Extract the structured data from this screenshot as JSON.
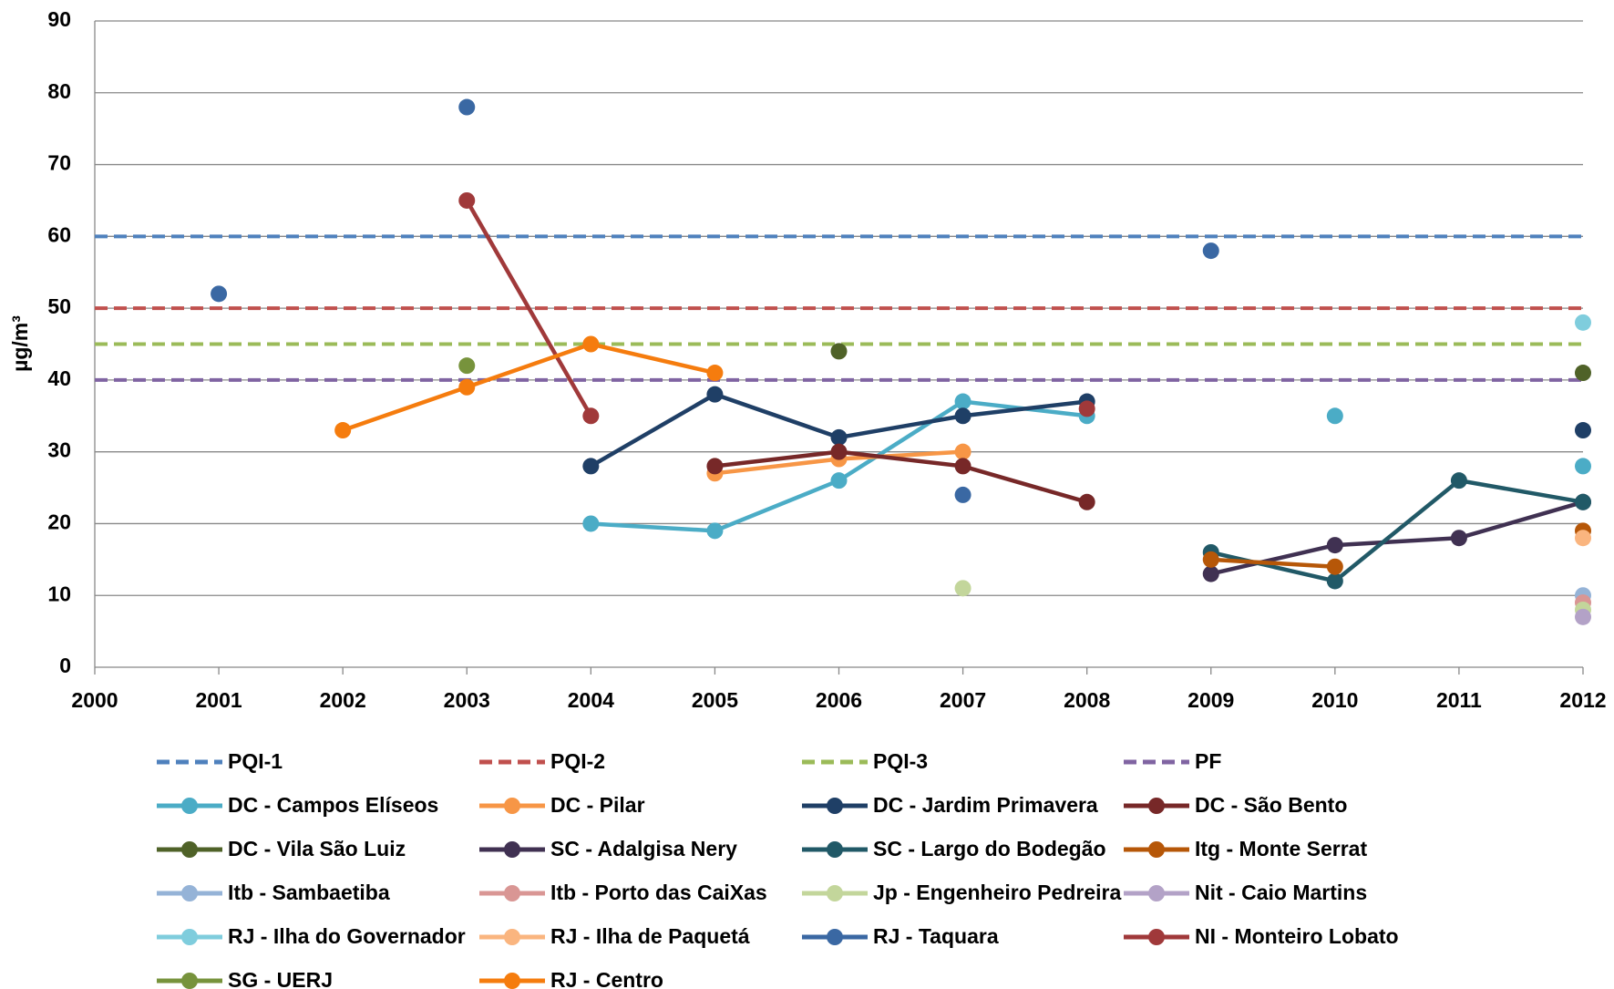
{
  "chart_data": {
    "type": "line",
    "ylabel": "µg/m³",
    "x": [
      2000,
      2001,
      2002,
      2003,
      2004,
      2005,
      2006,
      2007,
      2008,
      2009,
      2010,
      2011,
      2012
    ],
    "xlim": [
      2000,
      2012
    ],
    "xticks": [
      2000,
      2001,
      2002,
      2003,
      2004,
      2005,
      2006,
      2007,
      2008,
      2009,
      2010,
      2011,
      2012
    ],
    "ylim": [
      0,
      90
    ],
    "yticks": [
      0,
      10,
      20,
      30,
      40,
      50,
      60,
      70,
      80,
      90
    ],
    "grid": true,
    "series": [
      {
        "name": "PQI-1",
        "color": "#4f81bd",
        "dashed": true,
        "values": [
          60,
          60,
          60,
          60,
          60,
          60,
          60,
          60,
          60,
          60,
          60,
          60,
          60
        ]
      },
      {
        "name": "PQI-2",
        "color": "#c0504d",
        "dashed": true,
        "values": [
          50,
          50,
          50,
          50,
          50,
          50,
          50,
          50,
          50,
          50,
          50,
          50,
          50
        ]
      },
      {
        "name": "PQI-3",
        "color": "#9bbb59",
        "dashed": true,
        "values": [
          45,
          45,
          45,
          45,
          45,
          45,
          45,
          45,
          45,
          45,
          45,
          45,
          45
        ]
      },
      {
        "name": "PF",
        "color": "#8064a2",
        "dashed": true,
        "values": [
          40,
          40,
          40,
          40,
          40,
          40,
          40,
          40,
          40,
          40,
          40,
          40,
          40
        ]
      },
      {
        "name": "DC - Campos Elíseos",
        "color": "#4bacc6",
        "values": [
          null,
          null,
          null,
          null,
          20,
          19,
          26,
          37,
          35,
          null,
          35,
          null,
          28
        ]
      },
      {
        "name": "DC - Pilar",
        "color": "#f79646",
        "values": [
          null,
          null,
          null,
          null,
          null,
          27,
          29,
          30,
          null,
          null,
          null,
          null,
          null
        ]
      },
      {
        "name": "DC - Jardim Primavera",
        "color": "#1f3f66",
        "values": [
          null,
          null,
          null,
          null,
          28,
          38,
          32,
          35,
          37,
          null,
          null,
          null,
          33
        ]
      },
      {
        "name": "DC - São Bento",
        "color": "#772828",
        "values": [
          null,
          null,
          null,
          null,
          null,
          28,
          30,
          28,
          23,
          null,
          null,
          null,
          null
        ]
      },
      {
        "name": "DC - Vila São Luiz",
        "color": "#4f6228",
        "values": [
          null,
          null,
          null,
          null,
          null,
          null,
          44,
          null,
          null,
          null,
          null,
          null,
          41
        ]
      },
      {
        "name": "SC - Adalgisa Nery",
        "color": "#403152",
        "values": [
          null,
          null,
          null,
          null,
          null,
          null,
          null,
          null,
          null,
          13,
          17,
          18,
          23
        ]
      },
      {
        "name": "SC - Largo do Bodegão",
        "color": "#215967",
        "values": [
          null,
          null,
          null,
          null,
          null,
          null,
          null,
          null,
          null,
          16,
          12,
          26,
          23
        ]
      },
      {
        "name": "Itg - Monte Serrat",
        "color": "#b65708",
        "values": [
          null,
          null,
          null,
          null,
          null,
          null,
          null,
          null,
          null,
          15,
          14,
          null,
          19
        ]
      },
      {
        "name": "Itb - Sambaetiba",
        "color": "#95b3d7",
        "values": [
          null,
          null,
          null,
          null,
          null,
          null,
          null,
          null,
          null,
          null,
          null,
          null,
          10
        ]
      },
      {
        "name": "Itb - Porto das CaiXas",
        "color": "#d99694",
        "values": [
          null,
          null,
          null,
          null,
          null,
          null,
          null,
          null,
          null,
          null,
          null,
          null,
          9
        ]
      },
      {
        "name": "Jp - Engenheiro Pedreira",
        "color": "#c3d69b",
        "values": [
          null,
          null,
          null,
          null,
          null,
          null,
          null,
          11,
          null,
          null,
          null,
          null,
          8
        ]
      },
      {
        "name": "Nit - Caio Martins",
        "color": "#b3a2c7",
        "values": [
          null,
          null,
          null,
          null,
          null,
          null,
          null,
          null,
          null,
          null,
          null,
          null,
          7
        ]
      },
      {
        "name": "RJ - Ilha do Governador",
        "color": "#7fcddd",
        "values": [
          null,
          null,
          null,
          null,
          null,
          null,
          null,
          null,
          null,
          null,
          null,
          null,
          48
        ]
      },
      {
        "name": "RJ - Ilha de Paquetá",
        "color": "#fab57f",
        "values": [
          null,
          null,
          null,
          null,
          null,
          null,
          null,
          null,
          null,
          null,
          null,
          null,
          18
        ]
      },
      {
        "name": "RJ - Taquara",
        "color": "#3a68a3",
        "values": [
          null,
          52,
          null,
          78,
          null,
          null,
          null,
          24,
          null,
          58,
          null,
          null,
          null
        ]
      },
      {
        "name": "NI - Monteiro Lobato",
        "color": "#a0393a",
        "values": [
          null,
          null,
          null,
          65,
          35,
          null,
          null,
          null,
          36,
          null,
          null,
          null,
          null
        ]
      },
      {
        "name": "SG - UERJ",
        "color": "#77933c",
        "values": [
          null,
          null,
          null,
          42,
          null,
          null,
          null,
          null,
          null,
          null,
          null,
          null,
          null
        ]
      },
      {
        "name": "RJ - Centro",
        "color": "#f57c0e",
        "values": [
          null,
          null,
          33,
          39,
          45,
          41,
          null,
          null,
          null,
          null,
          null,
          null,
          null
        ]
      }
    ]
  }
}
